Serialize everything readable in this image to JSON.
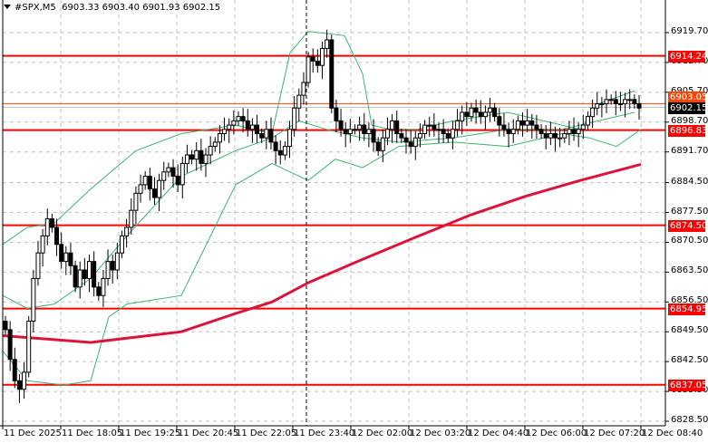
{
  "header": {
    "symbol": "#SPX,M5",
    "ohlc": "6903.33 6903.40 6901.93 6902.15"
  },
  "colors": {
    "background": "#ffffff",
    "grid": "#c0c0c0",
    "level_line": "#ff0000",
    "ma_line": "#dc143c",
    "bollinger": "#3cb371",
    "bid_line": "#c0c0c0",
    "ask_line": "#ff4500",
    "current_price_bg": "#000000"
  },
  "price_axis": {
    "ticks": [
      "6919.70",
      "6912.70",
      "6905.70",
      "6898.70",
      "6891.70",
      "6884.50",
      "6877.50",
      "6870.50",
      "6863.50",
      "6856.50",
      "6849.50",
      "6842.50",
      "6835.50",
      "6828.50"
    ],
    "level_tags": [
      "6914.24",
      "6896.83",
      "6874.50",
      "6854.95",
      "6837.05"
    ],
    "ask_tag": "6903.05",
    "current_price_tag": "6902.15"
  },
  "time_axis": {
    "ticks": [
      "11 Dec 2025",
      "11 Dec 18:05",
      "11 Dec 19:25",
      "11 Dec 20:45",
      "11 Dec 22:05",
      "11 Dec 23:40",
      "12 Dec 02:00",
      "12 Dec 03:20",
      "12 Dec 04:40",
      "12 Dec 06:00",
      "12 Dec 07:20",
      "12 Dec 08:40"
    ]
  },
  "chart_data": {
    "type": "candlestick",
    "title": "#SPX,M5",
    "xlabel": "",
    "ylabel": "",
    "ylim": [
      6828.5,
      6921.0
    ],
    "grid": true,
    "horizontal_levels": [
      6914.24,
      6896.83,
      6874.5,
      6854.95,
      6837.05
    ],
    "current_price": 6902.15,
    "ohlc_last": {
      "open": 6903.33,
      "high": 6903.4,
      "low": 6901.93,
      "close": 6902.15
    },
    "x_tick_labels": [
      "11 Dec 2025",
      "11 Dec 18:05",
      "11 Dec 19:25",
      "11 Dec 20:45",
      "11 Dec 22:05",
      "11 Dec 23:40",
      "12 Dec 02:00",
      "12 Dec 03:20",
      "12 Dec 04:40",
      "12 Dec 06:00",
      "12 Dec 07:20",
      "12 Dec 08:40"
    ],
    "y_tick_labels": [
      "6919.70",
      "6912.70",
      "6905.70",
      "6898.70",
      "6891.70",
      "6884.50",
      "6877.50",
      "6870.50",
      "6863.50",
      "6856.50",
      "6849.50",
      "6842.50",
      "6835.50",
      "6828.50"
    ],
    "candles_close": [
      6850,
      6843,
      6838,
      6836,
      6840,
      6852,
      6862,
      6868,
      6872,
      6876,
      6874,
      6870,
      6866,
      6868,
      6865,
      6860,
      6864,
      6862,
      6866,
      6860,
      6858,
      6862,
      6866,
      6864,
      6868,
      6872,
      6874,
      6878,
      6882,
      6884,
      6886,
      6883,
      6881,
      6885,
      6887,
      6888,
      6886,
      6884,
      6889,
      6891,
      6890,
      6892,
      6889,
      6891,
      6893,
      6894,
      6896,
      6897,
      6898,
      6899,
      6900,
      6899,
      6897,
      6898,
      6896,
      6895,
      6897,
      6894,
      6892,
      6891,
      6893,
      6897,
      6902,
      6905,
      6908,
      6914,
      6913,
      6912,
      6916,
      6918,
      6902,
      6899,
      6897,
      6896,
      6897,
      6897,
      6898,
      6896,
      6897,
      6894,
      6892,
      6895,
      6897,
      6899,
      6896,
      6895,
      6894,
      6893,
      6895,
      6896,
      6898,
      6898,
      6897,
      6897,
      6896,
      6895,
      6897,
      6899,
      6901,
      6900,
      6902,
      6901,
      6900,
      6901,
      6902,
      6900,
      6898,
      6897,
      6896,
      6897,
      6899,
      6898,
      6899,
      6898,
      6897,
      6896,
      6895,
      6896,
      6895,
      6895,
      6896,
      6897,
      6896,
      6897,
      6898,
      6900,
      6902,
      6903,
      6903,
      6904,
      6904,
      6903,
      6903,
      6904,
      6904,
      6903,
      6902
    ],
    "series": [
      {
        "name": "Moving Average (slow)",
        "points": [
          [
            3,
            6848.6
          ],
          [
            100,
            6847.0
          ],
          [
            200,
            6849.5
          ],
          [
            260,
            6853.8
          ],
          [
            300,
            6856.5
          ],
          [
            340,
            6861.0
          ],
          [
            400,
            6866.5
          ],
          [
            460,
            6871.8
          ],
          [
            520,
            6877.0
          ],
          [
            580,
            6881.3
          ],
          [
            640,
            6885.0
          ],
          [
            707,
            6888.8
          ]
        ]
      },
      {
        "name": "Bollinger Upper",
        "points": [
          [
            3,
            6870
          ],
          [
            30,
            6874
          ],
          [
            60,
            6875
          ],
          [
            100,
            6883
          ],
          [
            150,
            6892
          ],
          [
            200,
            6896
          ],
          [
            260,
            6898
          ],
          [
            300,
            6896
          ],
          [
            320,
            6915
          ],
          [
            340,
            6920
          ],
          [
            380,
            6919
          ],
          [
            400,
            6910
          ],
          [
            410,
            6898
          ],
          [
            430,
            6897
          ],
          [
            460,
            6897
          ],
          [
            500,
            6899
          ],
          [
            560,
            6901
          ],
          [
            620,
            6898
          ],
          [
            640,
            6897
          ],
          [
            660,
            6903
          ],
          [
            700,
            6906
          ]
        ]
      },
      {
        "name": "Bollinger Middle",
        "points": [
          [
            3,
            6858
          ],
          [
            30,
            6855
          ],
          [
            60,
            6856
          ],
          [
            100,
            6862
          ],
          [
            140,
            6872
          ],
          [
            200,
            6886
          ],
          [
            260,
            6892
          ],
          [
            300,
            6895
          ],
          [
            330,
            6899
          ],
          [
            360,
            6897
          ],
          [
            400,
            6895
          ],
          [
            440,
            6894
          ],
          [
            500,
            6895
          ],
          [
            560,
            6897
          ],
          [
            620,
            6897
          ],
          [
            660,
            6899
          ],
          [
            700,
            6901
          ]
        ]
      },
      {
        "name": "Bollinger Lower",
        "points": [
          [
            3,
            6845
          ],
          [
            30,
            6838
          ],
          [
            70,
            6837
          ],
          [
            100,
            6838
          ],
          [
            120,
            6853
          ],
          [
            140,
            6856
          ],
          [
            200,
            6858
          ],
          [
            260,
            6884
          ],
          [
            300,
            6889
          ],
          [
            340,
            6885
          ],
          [
            370,
            6890
          ],
          [
            400,
            6888
          ],
          [
            440,
            6893
          ],
          [
            500,
            6894
          ],
          [
            560,
            6893
          ],
          [
            620,
            6896
          ],
          [
            650,
            6895
          ],
          [
            680,
            6893
          ],
          [
            707,
            6897
          ]
        ]
      }
    ]
  }
}
